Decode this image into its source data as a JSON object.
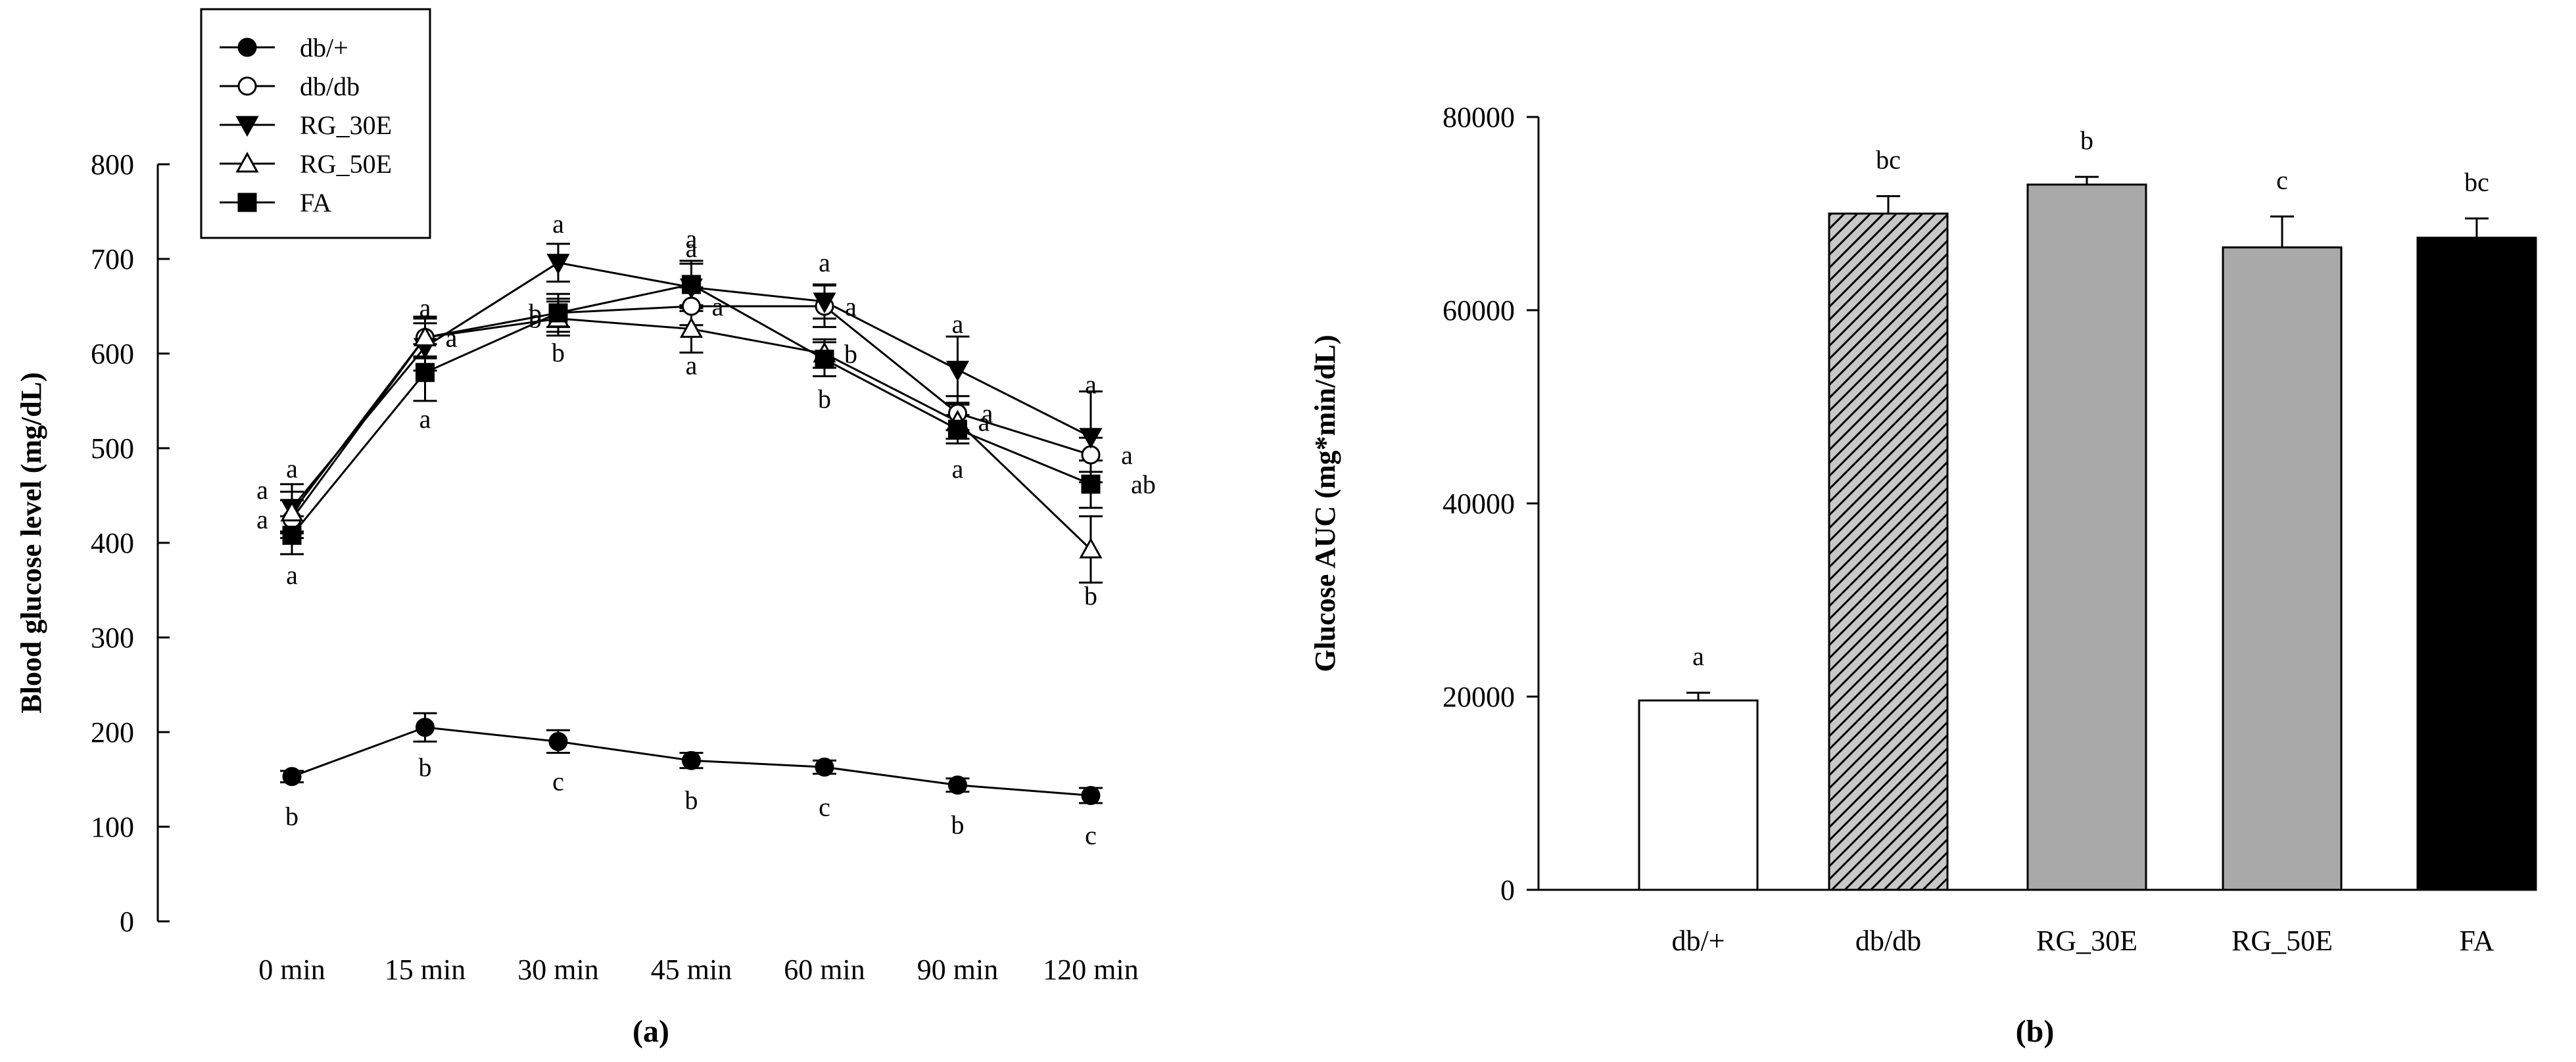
{
  "chart_data": [
    {
      "panel_label": "(a)",
      "type": "line",
      "title": "",
      "xlabel": "",
      "ylabel": "Blood glucose level (mg/dL)",
      "ylim": [
        0,
        800
      ],
      "yticks": [
        "0",
        "100",
        "200",
        "300",
        "400",
        "500",
        "600",
        "700",
        "800"
      ],
      "categories": [
        "0 min",
        "15 min",
        "30 min",
        "45 min",
        "60 min",
        "90 min",
        "120 min"
      ],
      "legend_position": "top-left",
      "series": [
        {
          "name": "db/+",
          "marker": "filled-circle",
          "values": [
            153,
            205,
            190,
            170,
            163,
            144,
            133
          ],
          "errors": [
            6,
            15,
            12,
            8,
            7,
            7,
            8
          ],
          "letters": [
            "b",
            "b",
            "c",
            "b",
            "c",
            "b",
            "c"
          ]
        },
        {
          "name": "db/db",
          "marker": "open-circle",
          "values": [
            425,
            617,
            643,
            650,
            650,
            537,
            493
          ],
          "errors": [
            20,
            22,
            15,
            20,
            22,
            18,
            18
          ],
          "letters": [
            "a",
            "a",
            "b",
            "a",
            "a",
            "a",
            "a"
          ]
        },
        {
          "name": "RG_30E",
          "marker": "filled-triangle-down",
          "values": [
            437,
            607,
            696,
            670,
            655,
            583,
            512
          ],
          "errors": [
            25,
            25,
            20,
            25,
            18,
            35,
            48
          ],
          "letters": [
            "a",
            "a",
            "a",
            "a",
            "a",
            "a",
            "a"
          ]
        },
        {
          "name": "RG_50E",
          "marker": "open-triangle-up",
          "values": [
            432,
            617,
            637,
            626,
            600,
            528,
            393
          ],
          "errors": [
            22,
            20,
            18,
            25,
            15,
            18,
            35
          ],
          "letters": [
            "a",
            "a",
            "b",
            "a",
            "b",
            "a",
            "b"
          ]
        },
        {
          "name": "FA",
          "marker": "filled-square",
          "values": [
            408,
            580,
            643,
            673,
            594,
            520,
            462
          ],
          "errors": [
            20,
            30,
            20,
            25,
            18,
            15,
            25
          ],
          "letters": [
            "a",
            "a",
            "b",
            "a",
            "b",
            "a",
            "ab"
          ]
        }
      ]
    },
    {
      "panel_label": "(b)",
      "type": "bar",
      "title": "",
      "xlabel": "",
      "ylabel": "Glucose AUC (mg*min/dL)",
      "ylim": [
        0,
        80000
      ],
      "yticks": [
        "0",
        "20000",
        "40000",
        "60000",
        "80000"
      ],
      "categories": [
        "db/+",
        "db/db",
        "RG_30E",
        "RG_50E",
        "FA"
      ],
      "values": [
        19600,
        70000,
        73000,
        66500,
        67500
      ],
      "errors": [
        800,
        1800,
        800,
        3200,
        2000
      ],
      "letters": [
        "a",
        "bc",
        "b",
        "c",
        "bc"
      ],
      "fills": [
        "white",
        "hatched",
        "#a9a9a9",
        "#a9a9a9",
        "#000000"
      ]
    }
  ]
}
